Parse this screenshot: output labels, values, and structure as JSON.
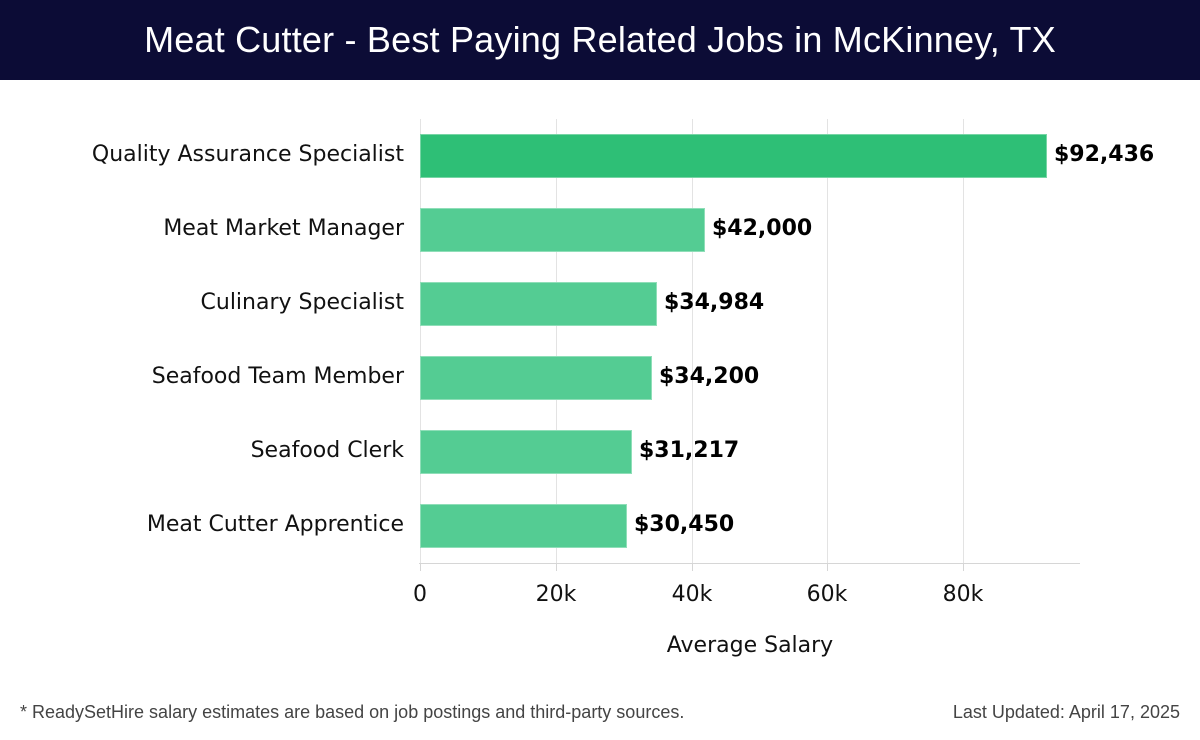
{
  "header": {
    "title": "Meat Cutter - Best Paying Related Jobs in McKinney, TX"
  },
  "footer": {
    "note": "* ReadySetHire salary estimates are based on job postings and third-party sources.",
    "last_updated": "Last Updated: April 17, 2025"
  },
  "colors": {
    "header_bg": "#0c0c36",
    "bar_top": "#2ebf76",
    "bar": "#54cc93"
  },
  "chart_data": {
    "type": "bar",
    "orientation": "horizontal",
    "title": "Meat Cutter - Best Paying Related Jobs in McKinney, TX",
    "xlabel": "Average Salary",
    "ylabel": "",
    "categories": [
      "Quality Assurance Specialist",
      "Meat Market Manager",
      "Culinary Specialist",
      "Seafood Team Member",
      "Seafood Clerk",
      "Meat Cutter Apprentice"
    ],
    "values": [
      92436,
      42000,
      34984,
      34200,
      31217,
      30450
    ],
    "value_labels": [
      "$92,436",
      "$42,000",
      "$34,984",
      "$34,200",
      "$31,217",
      "$30,450"
    ],
    "xticks": [
      0,
      20000,
      40000,
      60000,
      80000
    ],
    "xtick_labels": [
      "0",
      "20k",
      "40k",
      "60k",
      "80k"
    ],
    "xlim": [
      0,
      97000
    ],
    "grid": true,
    "legend": "none"
  }
}
